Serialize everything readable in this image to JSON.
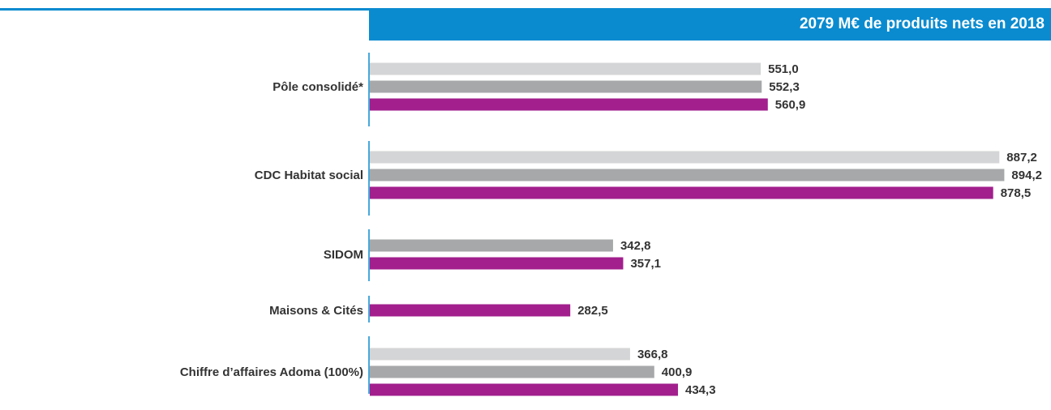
{
  "header": {
    "title": "2079 M€ de produits nets en 2018"
  },
  "colors": {
    "header_blue": "#0a8bd0",
    "series": [
      "#d4d5d6",
      "#a7a8aa",
      "#a21f8d"
    ],
    "axis": "#0a8bd0",
    "text": "#333333"
  },
  "chart_data": {
    "type": "bar",
    "orientation": "horizontal",
    "title": "2079 M€ de produits nets en 2018",
    "xlabel": "",
    "ylabel": "",
    "xlim": [
      0,
      950
    ],
    "grid": false,
    "legend": "none",
    "categories": [
      "Pôle consolidé*",
      "CDC Habitat social",
      "SIDOM",
      "Maisons & Cités",
      "Chiffre d’affaires Adoma (100%)"
    ],
    "groups": [
      {
        "category": "Pôle consolidé*",
        "bars": [
          {
            "series_index": 0,
            "value": 551.0,
            "label": "551,0"
          },
          {
            "series_index": 1,
            "value": 552.3,
            "label": "552,3"
          },
          {
            "series_index": 2,
            "value": 560.9,
            "label": "560,9"
          }
        ]
      },
      {
        "category": "CDC Habitat social",
        "bars": [
          {
            "series_index": 0,
            "value": 887.2,
            "label": "887,2"
          },
          {
            "series_index": 1,
            "value": 894.2,
            "label": "894,2"
          },
          {
            "series_index": 2,
            "value": 878.5,
            "label": "878,5"
          }
        ]
      },
      {
        "category": "SIDOM",
        "bars": [
          {
            "series_index": 1,
            "value": 342.8,
            "label": "342,8"
          },
          {
            "series_index": 2,
            "value": 357.1,
            "label": "357,1"
          }
        ]
      },
      {
        "category": "Maisons & Cités",
        "bars": [
          {
            "series_index": 2,
            "value": 282.5,
            "label": "282,5"
          }
        ]
      },
      {
        "category": "Chiffre d’affaires Adoma (100%)",
        "bars": [
          {
            "series_index": 0,
            "value": 366.8,
            "label": "366,8"
          },
          {
            "series_index": 1,
            "value": 400.9,
            "label": "400,9"
          },
          {
            "series_index": 2,
            "value": 434.3,
            "label": "434,3"
          }
        ]
      }
    ]
  }
}
